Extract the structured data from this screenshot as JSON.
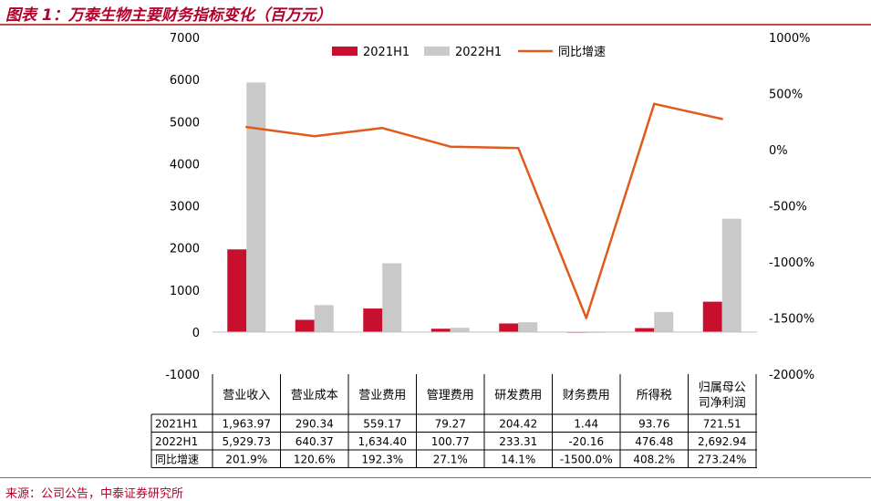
{
  "title": "图表 1：万泰生物主要财务指标变化（百万元）",
  "source": "来源：公司公告，中泰证券研究所",
  "colors": {
    "s2021": "#c8102e",
    "s2022": "#c9c9c9",
    "line": "#e05a1c",
    "title": "#b5002b"
  },
  "chart_data": {
    "type": "bar",
    "categories": [
      "营业收入",
      "营业成本",
      "营业费用",
      "管理费用",
      "研发费用",
      "财务费用",
      "所得税",
      "归属母公司净利润"
    ],
    "category_lines": [
      [
        "营业收入"
      ],
      [
        "营业成本"
      ],
      [
        "营业费用"
      ],
      [
        "管理费用"
      ],
      [
        "研发费用"
      ],
      [
        "财务费用"
      ],
      [
        "所得税"
      ],
      [
        "归属母公",
        "司净利润"
      ]
    ],
    "series": [
      {
        "name": "2021H1",
        "type": "bar",
        "axis": "left",
        "values": [
          1963.97,
          290.34,
          559.17,
          79.27,
          204.42,
          1.44,
          93.76,
          721.51
        ],
        "labels": [
          "1,963.97",
          "290.34",
          "559.17",
          "79.27",
          "204.42",
          "1.44",
          "93.76",
          "721.51"
        ]
      },
      {
        "name": "2022H1",
        "type": "bar",
        "axis": "left",
        "values": [
          5929.73,
          640.37,
          1634.4,
          100.77,
          233.31,
          -20.16,
          476.48,
          2692.94
        ],
        "labels": [
          "5,929.73",
          "640.37",
          "1,634.40",
          "100.77",
          "233.31",
          "-20.16",
          "476.48",
          "2,692.94"
        ]
      },
      {
        "name": "同比增速",
        "type": "line",
        "axis": "right",
        "values": [
          201.9,
          120.6,
          192.3,
          27.1,
          14.1,
          -1500.0,
          408.2,
          273.24
        ],
        "labels": [
          "201.9%",
          "120.6%",
          "192.3%",
          "27.1%",
          "14.1%",
          "-1500.0%",
          "408.2%",
          "273.24%"
        ]
      }
    ],
    "y_left": {
      "min": -1000,
      "max": 7000,
      "ticks": [
        -1000,
        0,
        1000,
        2000,
        3000,
        4000,
        5000,
        6000,
        7000
      ],
      "tick_labels": [
        "-1000",
        "0",
        "1000",
        "2000",
        "3000",
        "4000",
        "5000",
        "6000",
        "7000"
      ]
    },
    "y_right": {
      "min": -2000,
      "max": 1000,
      "ticks": [
        -2000,
        -1500,
        -1000,
        -500,
        0,
        500,
        1000
      ],
      "tick_labels": [
        "-2000%",
        "-1500%",
        "-1000%",
        "-500%",
        "0%",
        "500%",
        "1000%"
      ]
    },
    "legend": "top",
    "grid": false
  }
}
